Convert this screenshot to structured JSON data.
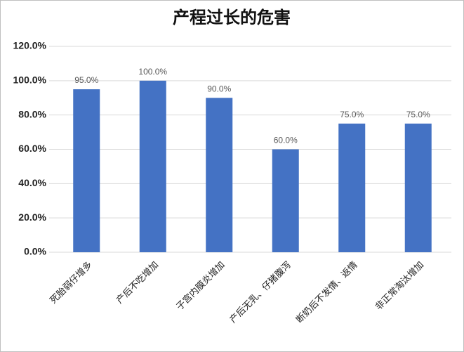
{
  "chart_data": {
    "type": "bar",
    "title": "产程过长的危害",
    "categories": [
      "死胎弱仔增多",
      "产后不吃增加",
      "子宫内膜炎增加",
      "产后无乳、仔猪腹泻",
      "断奶后不发情、返情",
      "非正常淘汰增加"
    ],
    "values": [
      95,
      100,
      90,
      60,
      75,
      75
    ],
    "value_labels": [
      "95.0%",
      "100.0%",
      "90.0%",
      "60.0%",
      "75.0%",
      "75.0%"
    ],
    "color": "#4472c4",
    "ylim": [
      0,
      120
    ],
    "yticks": [
      {
        "value": 0,
        "label": "0.0%"
      },
      {
        "value": 20,
        "label": "20.0%"
      },
      {
        "value": 40,
        "label": "40.0%"
      },
      {
        "value": 60,
        "label": "60.0%"
      },
      {
        "value": 80,
        "label": "80.0%"
      },
      {
        "value": 100,
        "label": "100.0%"
      },
      {
        "value": 120,
        "label": "120.0%"
      }
    ],
    "grid": true
  }
}
